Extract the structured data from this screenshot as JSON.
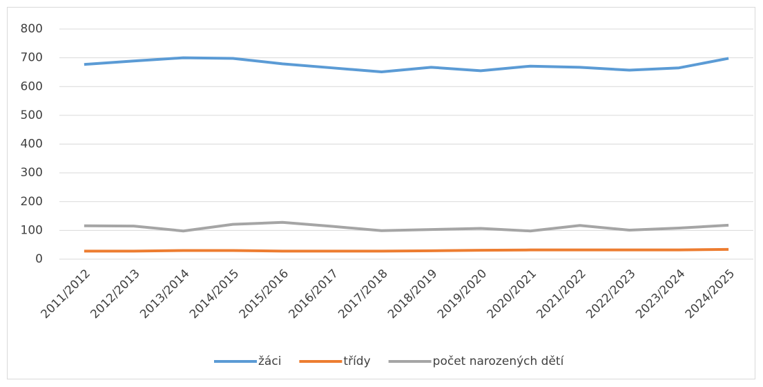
{
  "chart_data": {
    "type": "line",
    "categories": [
      "2011/2012",
      "2012/2013",
      "2013/2014",
      "2014/2015",
      "2015/2016",
      "2016/2017",
      "2017/2018",
      "2018/2019",
      "2019/2020",
      "2020/2021",
      "2021/2022",
      "2022/2023",
      "2023/2024",
      "2024/2025"
    ],
    "series": [
      {
        "name": "žáci",
        "color": "#5b9bd5",
        "values": [
          677,
          689,
          700,
          698,
          679,
          665,
          651,
          667,
          655,
          671,
          667,
          657,
          665,
          698
        ]
      },
      {
        "name": "třídy",
        "color": "#ed7d31",
        "values": [
          28,
          28,
          30,
          30,
          28,
          28,
          28,
          29,
          31,
          32,
          32,
          32,
          32,
          34
        ]
      },
      {
        "name": "počet narozených dětí",
        "color": "#a5a5a5",
        "values": [
          116,
          115,
          98,
          121,
          128,
          114,
          99,
          103,
          107,
          98,
          117,
          101,
          108,
          118
        ]
      }
    ],
    "ylim": [
      0,
      800
    ],
    "yticks": [
      0,
      100,
      200,
      300,
      400,
      500,
      600,
      700,
      800
    ],
    "grid": true,
    "legend": "bottom"
  }
}
